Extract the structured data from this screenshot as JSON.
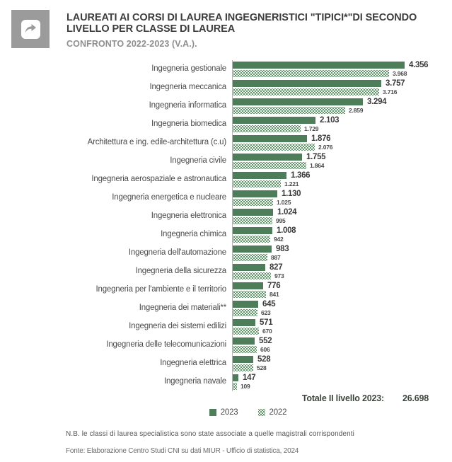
{
  "header": {
    "title": "LAUREATI AI CORSI DI LAUREA INGEGNERISTICI \"TIPICI*\"DI SECONDO LIVELLO PER CLASSE DI LAUREA",
    "subtitle": "CONFRONTO 2022-2023 (V.A.).",
    "icon": "share-icon"
  },
  "chart_data": {
    "type": "bar",
    "orientation": "horizontal",
    "title": "LAUREATI AI CORSI DI LAUREA INGEGNERISTICI \"TIPICI*\"DI SECONDO LIVELLO PER CLASSE DI LAUREA",
    "subtitle": "CONFRONTO 2022-2023 (V.A.).",
    "categories": [
      "Ingegneria gestionale",
      "Ingegneria meccanica",
      "Ingegneria informatica",
      "Ingegneria biomedica",
      "Architettura e ing. edile-architettura (c.u)",
      "Ingegneria civile",
      "Ingegneria aerospaziale e astronautica",
      "Ingegneria energetica e nucleare",
      "Ingegneria elettronica",
      "Ingegneria chimica",
      "Ingegneria dell'automazione",
      "Ingegneria della sicurezza",
      "Ingegneria per l'ambiente e il territorio",
      "Ingegneria dei materiali**",
      "Ingegneria dei sistemi edilizi",
      "Ingegneria delle telecomunicazioni",
      "Ingegneria elettrica",
      "Ingegneria navale"
    ],
    "series": [
      {
        "name": "2023",
        "style": "solid",
        "color": "#4e7d5a",
        "values": [
          4356,
          3757,
          3294,
          2103,
          1876,
          1755,
          1366,
          1130,
          1024,
          1008,
          983,
          827,
          776,
          645,
          571,
          552,
          528,
          147
        ],
        "labels": [
          "4.356",
          "3.757",
          "3.294",
          "2.103",
          "1.876",
          "1.755",
          "1.366",
          "1.130",
          "1.024",
          "1.008",
          "983",
          "827",
          "776",
          "645",
          "571",
          "552",
          "528",
          "147"
        ]
      },
      {
        "name": "2022",
        "style": "dotted",
        "color": "#5c8f66",
        "values": [
          3968,
          3716,
          2859,
          1729,
          2076,
          1864,
          1221,
          1025,
          995,
          942,
          887,
          973,
          841,
          623,
          670,
          606,
          528,
          109
        ],
        "labels": [
          "3.968",
          "3.716",
          "2.859",
          "1.729",
          "2.076",
          "1.864",
          "1.221",
          "1.025",
          "995",
          "942",
          "887",
          "973",
          "841",
          "623",
          "670",
          "606",
          "528",
          "109"
        ]
      }
    ],
    "xlim": [
      0,
      4356
    ],
    "grid": false,
    "legend_position": "bottom",
    "legend": [
      "2023",
      "2022"
    ],
    "total_label": "Totale II livello 2023:",
    "total_value": "26.698"
  },
  "footnotes": {
    "nb": "N.B. le classi di laurea specialistica sono state associate a quelle magistrali corrispondenti",
    "fonte": "Fonte: Elaborazione Centro Studi CNI su dati MIUR - Ufficio di statistica, 2024"
  }
}
